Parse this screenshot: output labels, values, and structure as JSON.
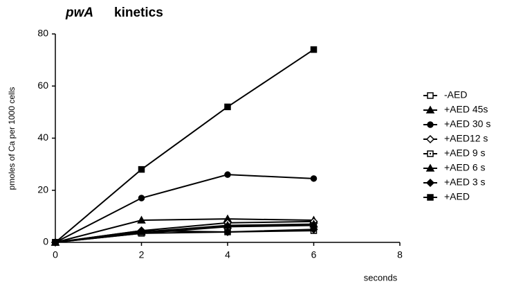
{
  "chart_data": {
    "type": "line",
    "title": [
      "pwA",
      "kinetics"
    ],
    "x_label": "seconds",
    "y_label": "pmoles of Ca per 1000 cells",
    "x": [
      0,
      2,
      4,
      6
    ],
    "xlim": [
      0,
      8
    ],
    "xticks": [
      0,
      2,
      4,
      6,
      8
    ],
    "ylim": [
      0,
      80
    ],
    "yticks": [
      0,
      20,
      40,
      60,
      80
    ],
    "grid": false,
    "series": [
      {
        "name": "-AED",
        "color": "#000000",
        "marker": "square-open",
        "values": [
          0,
          3.5,
          4,
          4.5
        ]
      },
      {
        "name": "+AED 45s",
        "color": "#000000",
        "marker": "triangle",
        "values": [
          0,
          8.5,
          9,
          8.5
        ]
      },
      {
        "name": "+AED 30 s",
        "color": "#000000",
        "marker": "circle",
        "values": [
          0,
          17,
          26,
          24.5
        ]
      },
      {
        "name": "+AED12 s",
        "color": "#000000",
        "marker": "diamond-open",
        "values": [
          0,
          4.5,
          7.5,
          8
        ]
      },
      {
        "name": "+AED 9 s",
        "color": "#000000",
        "marker": "square-dot",
        "values": [
          0,
          3.5,
          6,
          6.5
        ]
      },
      {
        "name": "+AED 6 s",
        "color": "#000000",
        "marker": "triangle",
        "values": [
          0,
          4,
          6.5,
          7
        ]
      },
      {
        "name": "+AED 3 s",
        "color": "#000000",
        "marker": "diamond",
        "values": [
          0,
          4.5,
          4,
          5
        ]
      },
      {
        "name": "+AED",
        "color": "#000000",
        "marker": "square",
        "values": [
          0,
          28,
          52,
          74
        ]
      }
    ]
  }
}
